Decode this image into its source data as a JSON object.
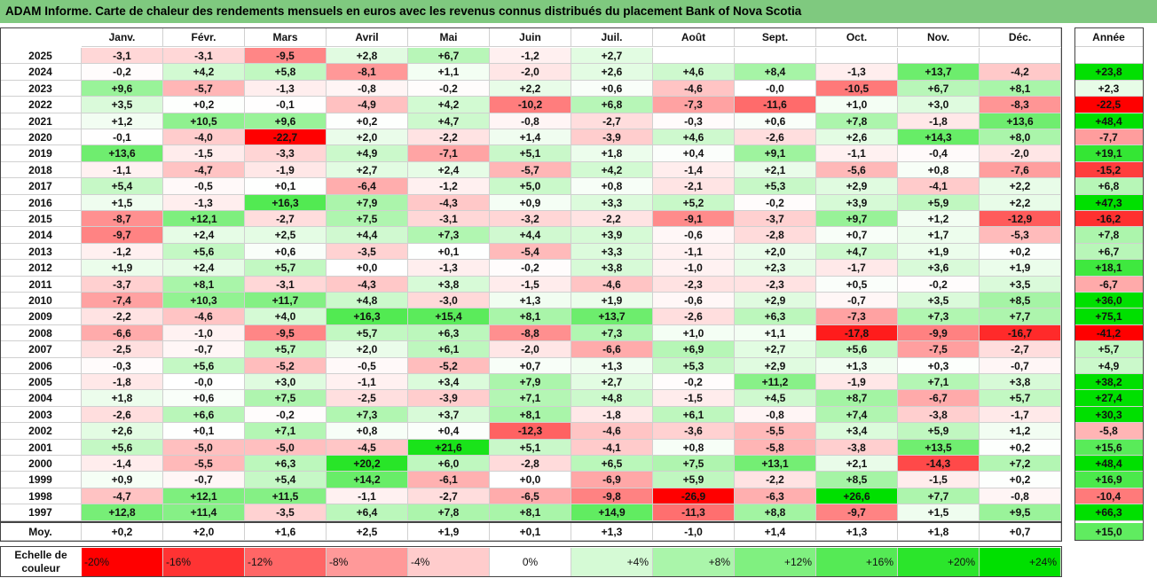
{
  "title": "ADAM Informe. Carte de chaleur des rendements mensuels en euros avec les revenus connus distribués du placement Bank of Nova Scotia",
  "chart_data": {
    "type": "heatmap",
    "months": [
      "Janv.",
      "Févr.",
      "Mars",
      "Avril",
      "Mai",
      "Juin",
      "Juil.",
      "Août",
      "Sept.",
      "Oct.",
      "Nov.",
      "Déc."
    ],
    "year_header": "Année",
    "avg_label": "Moy.",
    "rows": [
      {
        "year": "2025",
        "values": [
          "-3,1",
          "-3,1",
          "-9,5",
          "+2,8",
          "+6,7",
          "-1,2",
          "+2,7",
          "",
          "",
          "",
          "",
          ""
        ],
        "annual": ""
      },
      {
        "year": "2024",
        "values": [
          "-0,2",
          "+4,2",
          "+5,8",
          "-8,1",
          "+1,1",
          "-2,0",
          "+2,6",
          "+4,6",
          "+8,4",
          "-1,3",
          "+13,7",
          "-4,2"
        ],
        "annual": "+23,8"
      },
      {
        "year": "2023",
        "values": [
          "+9,6",
          "-5,7",
          "-1,3",
          "-0,8",
          "-0,2",
          "+2,2",
          "+0,6",
          "-4,6",
          "-0,0",
          "-10,5",
          "+6,7",
          "+8,1"
        ],
        "annual": "+2,3"
      },
      {
        "year": "2022",
        "values": [
          "+3,5",
          "+0,2",
          "-0,1",
          "-4,9",
          "+4,2",
          "-10,2",
          "+6,8",
          "-7,3",
          "-11,6",
          "+1,0",
          "+3,0",
          "-8,3"
        ],
        "annual": "-22,5"
      },
      {
        "year": "2021",
        "values": [
          "+1,2",
          "+10,5",
          "+9,6",
          "+0,2",
          "+4,7",
          "-0,8",
          "-2,7",
          "-0,3",
          "+0,6",
          "+7,8",
          "-1,8",
          "+13,6"
        ],
        "annual": "+48,4"
      },
      {
        "year": "2020",
        "values": [
          "-0,1",
          "-4,0",
          "-22,7",
          "+2,0",
          "-2,2",
          "+1,4",
          "-3,9",
          "+4,6",
          "-2,6",
          "+2,6",
          "+14,3",
          "+8,0"
        ],
        "annual": "-7,7"
      },
      {
        "year": "2019",
        "values": [
          "+13,6",
          "-1,5",
          "-3,3",
          "+4,9",
          "-7,1",
          "+5,1",
          "+1,8",
          "+0,4",
          "+9,1",
          "-1,1",
          "-0,4",
          "-2,0"
        ],
        "annual": "+19,1"
      },
      {
        "year": "2018",
        "values": [
          "-1,1",
          "-4,7",
          "-1,9",
          "+2,7",
          "+2,4",
          "-5,7",
          "+4,2",
          "-1,4",
          "+2,1",
          "-5,6",
          "+0,8",
          "-7,6"
        ],
        "annual": "-15,2"
      },
      {
        "year": "2017",
        "values": [
          "+5,4",
          "-0,5",
          "+0,1",
          "-6,4",
          "-1,2",
          "+5,0",
          "+0,8",
          "-2,1",
          "+5,3",
          "+2,9",
          "-4,1",
          "+2,2"
        ],
        "annual": "+6,8"
      },
      {
        "year": "2016",
        "values": [
          "+1,5",
          "-1,3",
          "+16,3",
          "+7,9",
          "-4,3",
          "+0,9",
          "+3,3",
          "+5,2",
          "-0,2",
          "+3,9",
          "+5,9",
          "+2,2"
        ],
        "annual": "+47,3"
      },
      {
        "year": "2015",
        "values": [
          "-8,7",
          "+12,1",
          "-2,7",
          "+7,5",
          "-3,1",
          "-3,2",
          "-2,2",
          "-9,1",
          "-3,7",
          "+9,7",
          "+1,2",
          "-12,9"
        ],
        "annual": "-16,2"
      },
      {
        "year": "2014",
        "values": [
          "-9,7",
          "+2,4",
          "+2,5",
          "+4,4",
          "+7,3",
          "+4,4",
          "+3,9",
          "-0,6",
          "-2,8",
          "+0,7",
          "+1,7",
          "-5,3"
        ],
        "annual": "+7,8"
      },
      {
        "year": "2013",
        "values": [
          "-1,2",
          "+5,6",
          "+0,6",
          "-3,5",
          "+0,1",
          "-5,4",
          "+3,3",
          "-1,1",
          "+2,0",
          "+4,7",
          "+1,9",
          "+0,2"
        ],
        "annual": "+6,7"
      },
      {
        "year": "2012",
        "values": [
          "+1,9",
          "+2,4",
          "+5,7",
          "+0,0",
          "-1,3",
          "-0,2",
          "+3,8",
          "-1,0",
          "+2,3",
          "-1,7",
          "+3,6",
          "+1,9"
        ],
        "annual": "+18,1"
      },
      {
        "year": "2011",
        "values": [
          "-3,7",
          "+8,1",
          "-3,1",
          "-4,3",
          "+3,8",
          "-1,5",
          "-4,6",
          "-2,3",
          "-2,3",
          "+0,5",
          "-0,2",
          "+3,5"
        ],
        "annual": "-6,7"
      },
      {
        "year": "2010",
        "values": [
          "-7,4",
          "+10,3",
          "+11,7",
          "+4,8",
          "-3,0",
          "+1,3",
          "+1,9",
          "-0,6",
          "+2,9",
          "-0,7",
          "+3,5",
          "+8,5"
        ],
        "annual": "+36,0"
      },
      {
        "year": "2009",
        "values": [
          "-2,2",
          "-4,6",
          "+4,0",
          "+16,3",
          "+15,4",
          "+8,1",
          "+13,7",
          "-2,6",
          "+6,3",
          "-7,3",
          "+7,3",
          "+7,7"
        ],
        "annual": "+75,1"
      },
      {
        "year": "2008",
        "values": [
          "-6,6",
          "-1,0",
          "-9,5",
          "+5,7",
          "+6,3",
          "-8,8",
          "+7,3",
          "+1,0",
          "+1,1",
          "-17,8",
          "-9,9",
          "-16,7"
        ],
        "annual": "-41,2"
      },
      {
        "year": "2007",
        "values": [
          "-2,5",
          "-0,7",
          "+5,7",
          "+2,0",
          "+6,1",
          "-2,0",
          "-6,6",
          "+6,9",
          "+2,7",
          "+5,6",
          "-7,5",
          "-2,7"
        ],
        "annual": "+5,7"
      },
      {
        "year": "2006",
        "values": [
          "-0,3",
          "+5,6",
          "-5,2",
          "-0,5",
          "-5,2",
          "+0,7",
          "+1,3",
          "+5,3",
          "+2,9",
          "+1,3",
          "+0,3",
          "-0,7"
        ],
        "annual": "+4,9"
      },
      {
        "year": "2005",
        "values": [
          "-1,8",
          "-0,0",
          "+3,0",
          "-1,1",
          "+3,4",
          "+7,9",
          "+2,7",
          "-0,2",
          "+11,2",
          "-1,9",
          "+7,1",
          "+3,8"
        ],
        "annual": "+38,2"
      },
      {
        "year": "2004",
        "values": [
          "+1,8",
          "+0,6",
          "+7,5",
          "-2,5",
          "-3,9",
          "+7,1",
          "+4,8",
          "-1,5",
          "+4,5",
          "+8,7",
          "-6,7",
          "+5,7"
        ],
        "annual": "+27,4"
      },
      {
        "year": "2003",
        "values": [
          "-2,6",
          "+6,6",
          "-0,2",
          "+7,3",
          "+3,7",
          "+8,1",
          "-1,8",
          "+6,1",
          "-0,8",
          "+7,4",
          "-3,8",
          "-1,7"
        ],
        "annual": "+30,3"
      },
      {
        "year": "2002",
        "values": [
          "+2,6",
          "+0,1",
          "+7,1",
          "+0,8",
          "+0,4",
          "-12,3",
          "-4,6",
          "-3,6",
          "-5,5",
          "+3,4",
          "+5,9",
          "+1,2"
        ],
        "annual": "-5,8"
      },
      {
        "year": "2001",
        "values": [
          "+5,6",
          "-5,0",
          "-5,0",
          "-4,5",
          "+21,6",
          "+5,1",
          "-4,1",
          "+0,8",
          "-5,8",
          "-3,8",
          "+13,5",
          "+0,2"
        ],
        "annual": "+15,6"
      },
      {
        "year": "2000",
        "values": [
          "-1,4",
          "-5,5",
          "+6,3",
          "+20,2",
          "+6,0",
          "-2,8",
          "+6,5",
          "+7,5",
          "+13,1",
          "+2,1",
          "-14,3",
          "+7,2"
        ],
        "annual": "+48,4"
      },
      {
        "year": "1999",
        "values": [
          "+0,9",
          "-0,7",
          "+5,4",
          "+14,2",
          "-6,1",
          "+0,0",
          "-6,9",
          "+5,9",
          "-2,2",
          "+8,5",
          "-1,5",
          "+0,2"
        ],
        "annual": "+16,9"
      },
      {
        "year": "1998",
        "values": [
          "-4,7",
          "+12,1",
          "+11,5",
          "-1,1",
          "-2,7",
          "-6,5",
          "-9,8",
          "-26,9",
          "-6,3",
          "+26,6",
          "+7,7",
          "-0,8"
        ],
        "annual": "-10,4"
      },
      {
        "year": "1997",
        "values": [
          "+12,8",
          "+11,4",
          "-3,5",
          "+6,4",
          "+7,8",
          "+8,1",
          "+14,9",
          "-11,3",
          "+8,8",
          "-9,7",
          "+1,5",
          "+9,5"
        ],
        "annual": "+66,3"
      }
    ],
    "averages": [
      "+0,2",
      "+2,0",
      "+1,6",
      "+2,5",
      "+1,9",
      "+0,1",
      "+1,3",
      "-1,0",
      "+1,4",
      "+1,3",
      "+1,8",
      "+0,7"
    ],
    "average_annual": "+15,0",
    "scale_label_line1": "Echelle de",
    "scale_label_line2": "couleur",
    "scale": [
      {
        "label": "-20%",
        "v": -20
      },
      {
        "label": "-16%",
        "v": -16
      },
      {
        "label": "-12%",
        "v": -12
      },
      {
        "label": "-8%",
        "v": -8
      },
      {
        "label": "-4%",
        "v": -4
      },
      {
        "label": "0%",
        "v": 0
      },
      {
        "label": "+4%",
        "v": 4
      },
      {
        "label": "+8%",
        "v": 8
      },
      {
        "label": "+12%",
        "v": 12
      },
      {
        "label": "+16%",
        "v": 16
      },
      {
        "label": "+20%",
        "v": 20
      },
      {
        "label": "+24%",
        "v": 24
      }
    ],
    "colors": {
      "negative_max": "#ff0000",
      "zero": "#ffffff",
      "positive_max": "#00e000"
    },
    "color_range": {
      "negative": -20,
      "positive": 24
    }
  }
}
